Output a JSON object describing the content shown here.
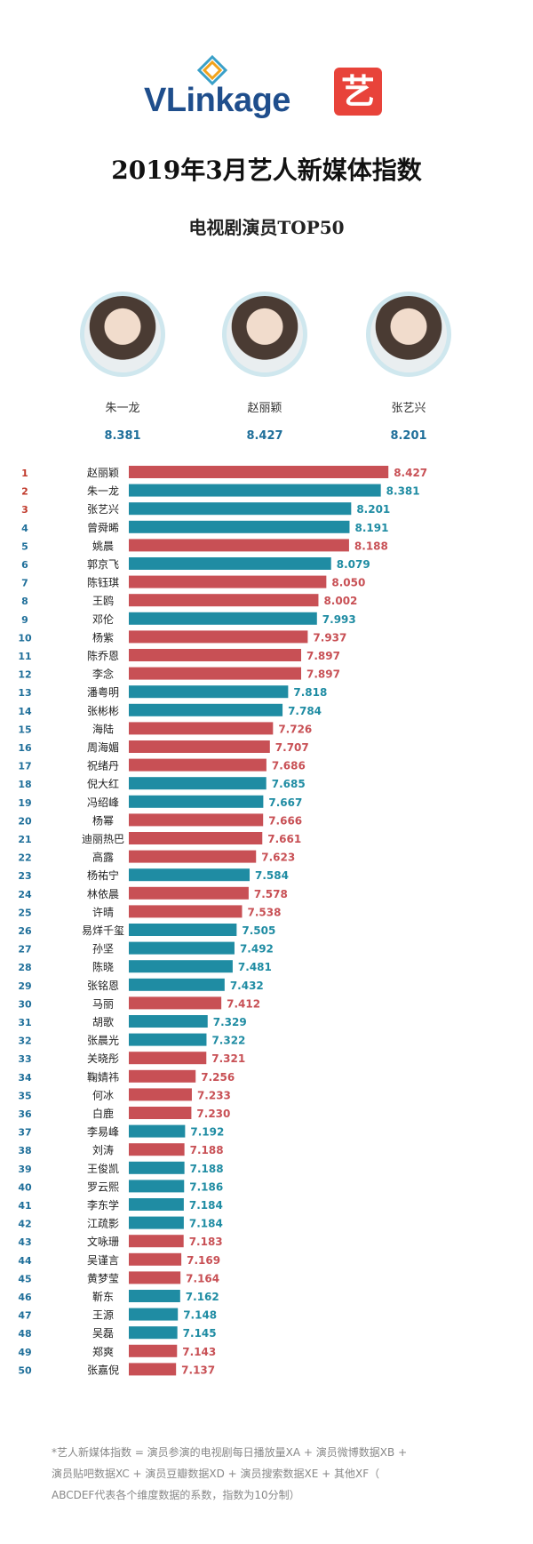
{
  "brand": {
    "logo_text": "VLinkage",
    "badge_text": "艺"
  },
  "header": {
    "title": "2019年3月艺人新媒体指数",
    "subtitle": "电视剧演员TOP50"
  },
  "podium": [
    {
      "name": "朱一龙",
      "score": "8.381"
    },
    {
      "name": "赵丽颖",
      "score": "8.427"
    },
    {
      "name": "张艺兴",
      "score": "8.201"
    }
  ],
  "colors": {
    "red": "#c85055",
    "teal": "#1f8ca3",
    "rank_red": "#c0392b",
    "rank_blue": "#1f6f9a"
  },
  "chart_data": {
    "type": "bar",
    "orientation": "horizontal",
    "categories": [
      "赵丽颖",
      "朱一龙",
      "张艺兴",
      "曾舜晞",
      "姚晨",
      "郭京飞",
      "陈钰琪",
      "王鸥",
      "邓伦",
      "杨紫",
      "陈乔恩",
      "李念",
      "潘粤明",
      "张彬彬",
      "海陆",
      "周海媚",
      "祝绪丹",
      "倪大红",
      "冯绍峰",
      "杨幂",
      "迪丽热巴",
      "高露",
      "杨祐宁",
      "林依晨",
      "许晴",
      "易烊千玺",
      "孙坚",
      "陈晓",
      "张铭恩",
      "马丽",
      "胡歌",
      "张晨光",
      "关晓彤",
      "鞠婧祎",
      "何冰",
      "白鹿",
      "李易峰",
      "刘涛",
      "王俊凯",
      "罗云熙",
      "李东学",
      "江疏影",
      "文咏珊",
      "吴谨言",
      "黄梦莹",
      "靳东",
      "王源",
      "吴磊",
      "郑爽",
      "张嘉倪"
    ],
    "values": [
      8.427,
      8.381,
      8.201,
      8.191,
      8.188,
      8.079,
      8.05,
      8.002,
      7.993,
      7.937,
      7.897,
      7.897,
      7.818,
      7.784,
      7.726,
      7.707,
      7.686,
      7.685,
      7.667,
      7.666,
      7.661,
      7.623,
      7.584,
      7.578,
      7.538,
      7.505,
      7.492,
      7.481,
      7.432,
      7.412,
      7.329,
      7.322,
      7.321,
      7.256,
      7.233,
      7.23,
      7.192,
      7.188,
      7.188,
      7.186,
      7.184,
      7.184,
      7.183,
      7.169,
      7.164,
      7.162,
      7.148,
      7.145,
      7.143,
      7.137
    ],
    "value_labels": [
      "8.427",
      "8.381",
      "8.201",
      "8.191",
      "8.188",
      "8.079",
      "8.050",
      "8.002",
      "7.993",
      "7.937",
      "7.897",
      "7.897",
      "7.818",
      "7.784",
      "7.726",
      "7.707",
      "7.686",
      "7.685",
      "7.667",
      "7.666",
      "7.661",
      "7.623",
      "7.584",
      "7.578",
      "7.538",
      "7.505",
      "7.492",
      "7.481",
      "7.432",
      "7.412",
      "7.329",
      "7.322",
      "7.321",
      "7.256",
      "7.233",
      "7.230",
      "7.192",
      "7.188",
      "7.188",
      "7.186",
      "7.184",
      "7.184",
      "7.183",
      "7.169",
      "7.164",
      "7.162",
      "7.148",
      "7.145",
      "7.143",
      "7.137"
    ],
    "bar_colors": [
      "red",
      "teal",
      "teal",
      "teal",
      "red",
      "teal",
      "red",
      "red",
      "teal",
      "red",
      "red",
      "red",
      "teal",
      "teal",
      "red",
      "red",
      "red",
      "teal",
      "teal",
      "red",
      "red",
      "red",
      "teal",
      "red",
      "red",
      "teal",
      "teal",
      "teal",
      "teal",
      "red",
      "teal",
      "teal",
      "red",
      "red",
      "red",
      "red",
      "teal",
      "red",
      "teal",
      "teal",
      "teal",
      "teal",
      "red",
      "red",
      "red",
      "teal",
      "teal",
      "teal",
      "red",
      "red"
    ],
    "xlim": [
      6.85,
      8.55
    ]
  },
  "footnote": {
    "line1": "*艺人新媒体指数 = 演员参演的电视剧每日播放量XA + 演员微博数据XB +",
    "line2": "演员贴吧数据XC + 演员豆瓣数据XD + 演员搜索数据XE + 其他XF（",
    "line3": "ABCDEF代表各个维度数据的系数，指数为10分制）"
  }
}
